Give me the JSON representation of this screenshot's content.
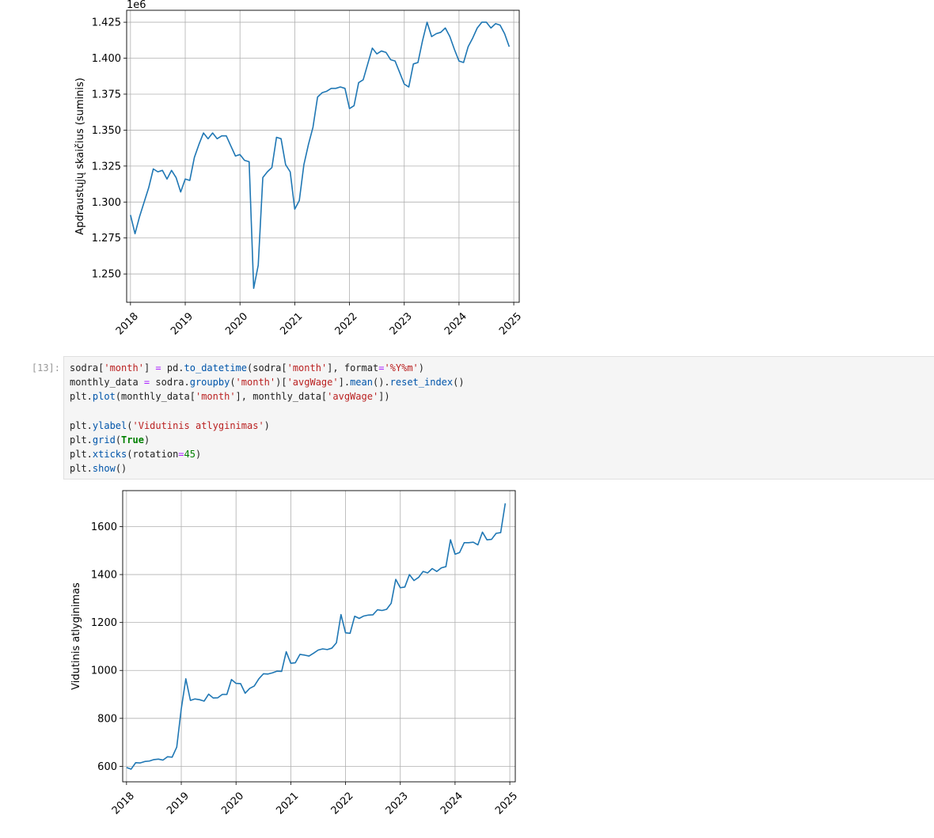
{
  "cell": {
    "prompt": "[13]:",
    "code_lines": [
      [
        {
          "t": "sodra",
          "c": "pl"
        },
        {
          "t": "[",
          "c": "pl"
        },
        {
          "t": "'month'",
          "c": "str"
        },
        {
          "t": "] ",
          "c": "pl"
        },
        {
          "t": "=",
          "c": "op"
        },
        {
          "t": " pd.",
          "c": "pl"
        },
        {
          "t": "to_datetime",
          "c": "fn"
        },
        {
          "t": "(sodra[",
          "c": "pl"
        },
        {
          "t": "'month'",
          "c": "str"
        },
        {
          "t": "], format",
          "c": "pl"
        },
        {
          "t": "=",
          "c": "op"
        },
        {
          "t": "'%Y%m'",
          "c": "str"
        },
        {
          "t": ")",
          "c": "pl"
        }
      ],
      [
        {
          "t": "monthly_data ",
          "c": "pl"
        },
        {
          "t": "=",
          "c": "op"
        },
        {
          "t": " sodra.",
          "c": "pl"
        },
        {
          "t": "groupby",
          "c": "fn"
        },
        {
          "t": "(",
          "c": "pl"
        },
        {
          "t": "'month'",
          "c": "str"
        },
        {
          "t": ")[",
          "c": "pl"
        },
        {
          "t": "'avgWage'",
          "c": "str"
        },
        {
          "t": "].",
          "c": "pl"
        },
        {
          "t": "mean",
          "c": "fn"
        },
        {
          "t": "().",
          "c": "pl"
        },
        {
          "t": "reset_index",
          "c": "fn"
        },
        {
          "t": "()",
          "c": "pl"
        }
      ],
      [
        {
          "t": "plt.",
          "c": "pl"
        },
        {
          "t": "plot",
          "c": "fn"
        },
        {
          "t": "(monthly_data[",
          "c": "pl"
        },
        {
          "t": "'month'",
          "c": "str"
        },
        {
          "t": "], monthly_data[",
          "c": "pl"
        },
        {
          "t": "'avgWage'",
          "c": "str"
        },
        {
          "t": "])",
          "c": "pl"
        }
      ],
      [],
      [
        {
          "t": "plt.",
          "c": "pl"
        },
        {
          "t": "ylabel",
          "c": "fn"
        },
        {
          "t": "(",
          "c": "pl"
        },
        {
          "t": "'Vidutinis atlyginimas'",
          "c": "str"
        },
        {
          "t": ")",
          "c": "pl"
        }
      ],
      [
        {
          "t": "plt.",
          "c": "pl"
        },
        {
          "t": "grid",
          "c": "fn"
        },
        {
          "t": "(",
          "c": "pl"
        },
        {
          "t": "True",
          "c": "kw"
        },
        {
          "t": ")",
          "c": "pl"
        }
      ],
      [
        {
          "t": "plt.",
          "c": "pl"
        },
        {
          "t": "xticks",
          "c": "fn"
        },
        {
          "t": "(rotation",
          "c": "pl"
        },
        {
          "t": "=",
          "c": "op"
        },
        {
          "t": "45",
          "c": "num"
        },
        {
          "t": ")",
          "c": "pl"
        }
      ],
      [
        {
          "t": "plt.",
          "c": "pl"
        },
        {
          "t": "show",
          "c": "fn"
        },
        {
          "t": "()",
          "c": "pl"
        }
      ]
    ]
  },
  "colors": {
    "line": "#1f77b4",
    "grid": "#b0b0b0"
  },
  "chart_data": [
    {
      "type": "line",
      "ylabel": "Apdraustųjų skaičius (suminis)",
      "offset_text": "1e6",
      "grid": true,
      "xlim": [
        2017.93,
        2025.1
      ],
      "ylim": [
        1.2303,
        1.4333
      ],
      "xticks": [
        2018,
        2019,
        2020,
        2021,
        2022,
        2023,
        2024,
        2025
      ],
      "xtick_labels": [
        "2018",
        "2019",
        "2020",
        "2021",
        "2022",
        "2023",
        "2024",
        "2025"
      ],
      "yticks": [
        1.25,
        1.275,
        1.3,
        1.325,
        1.35,
        1.375,
        1.4,
        1.425
      ],
      "ytick_labels": [
        "1.250",
        "1.275",
        "1.300",
        "1.325",
        "1.350",
        "1.375",
        "1.400",
        "1.425"
      ],
      "x": [
        2018.0,
        2018.083,
        2018.167,
        2018.25,
        2018.333,
        2018.417,
        2018.5,
        2018.583,
        2018.667,
        2018.75,
        2018.833,
        2018.917,
        2019.0,
        2019.083,
        2019.167,
        2019.25,
        2019.333,
        2019.417,
        2019.5,
        2019.583,
        2019.667,
        2019.75,
        2019.833,
        2019.917,
        2020.0,
        2020.083,
        2020.167,
        2020.25,
        2020.333,
        2020.417,
        2020.5,
        2020.583,
        2020.667,
        2020.75,
        2020.833,
        2020.917,
        2021.0,
        2021.083,
        2021.167,
        2021.25,
        2021.333,
        2021.417,
        2021.5,
        2021.583,
        2021.667,
        2021.75,
        2021.833,
        2021.917,
        2022.0,
        2022.083,
        2022.167,
        2022.25,
        2022.333,
        2022.417,
        2022.5,
        2022.583,
        2022.667,
        2022.75,
        2022.833,
        2022.917,
        2023.0,
        2023.083,
        2023.167,
        2023.25,
        2023.333,
        2023.417,
        2023.5,
        2023.583,
        2023.667,
        2023.75,
        2023.833,
        2023.917,
        2024.0,
        2024.083,
        2024.167,
        2024.25,
        2024.333,
        2024.417,
        2024.5,
        2024.583,
        2024.667,
        2024.75,
        2024.833,
        2024.917
      ],
      "y": [
        1.291,
        1.278,
        1.29,
        1.3,
        1.31,
        1.323,
        1.321,
        1.322,
        1.316,
        1.322,
        1.317,
        1.307,
        1.316,
        1.315,
        1.331,
        1.34,
        1.348,
        1.344,
        1.348,
        1.344,
        1.346,
        1.346,
        1.339,
        1.332,
        1.333,
        1.329,
        1.328,
        1.24,
        1.256,
        1.317,
        1.321,
        1.324,
        1.345,
        1.344,
        1.326,
        1.321,
        1.295,
        1.301,
        1.326,
        1.34,
        1.352,
        1.373,
        1.376,
        1.377,
        1.379,
        1.379,
        1.38,
        1.379,
        1.365,
        1.367,
        1.383,
        1.385,
        1.396,
        1.407,
        1.403,
        1.405,
        1.404,
        1.399,
        1.398,
        1.39,
        1.382,
        1.38,
        1.396,
        1.397,
        1.412,
        1.425,
        1.415,
        1.417,
        1.418,
        1.421,
        1.415,
        1.406,
        1.398,
        1.397,
        1.408,
        1.414,
        1.421,
        1.425,
        1.425,
        1.421,
        1.424,
        1.423,
        1.417,
        1.408
      ]
    },
    {
      "type": "line",
      "ylabel": "Vidutinis atlyginimas",
      "grid": true,
      "xlim": [
        2017.93,
        2025.1
      ],
      "ylim": [
        535.3,
        1750.2
      ],
      "xticks": [
        2018,
        2019,
        2020,
        2021,
        2022,
        2023,
        2024,
        2025
      ],
      "xtick_labels": [
        "2018",
        "2019",
        "2020",
        "2021",
        "2022",
        "2023",
        "2024",
        "2025"
      ],
      "yticks": [
        600,
        800,
        1000,
        1200,
        1400,
        1600
      ],
      "ytick_labels": [
        "600",
        "800",
        "1000",
        "1200",
        "1400",
        "1600"
      ],
      "x": [
        2018.0,
        2018.083,
        2018.167,
        2018.25,
        2018.333,
        2018.417,
        2018.5,
        2018.583,
        2018.667,
        2018.75,
        2018.833,
        2018.917,
        2019.0,
        2019.083,
        2019.167,
        2019.25,
        2019.333,
        2019.417,
        2019.5,
        2019.583,
        2019.667,
        2019.75,
        2019.833,
        2019.917,
        2020.0,
        2020.083,
        2020.167,
        2020.25,
        2020.333,
        2020.417,
        2020.5,
        2020.583,
        2020.667,
        2020.75,
        2020.833,
        2020.917,
        2021.0,
        2021.083,
        2021.167,
        2021.25,
        2021.333,
        2021.417,
        2021.5,
        2021.583,
        2021.667,
        2021.75,
        2021.833,
        2021.917,
        2022.0,
        2022.083,
        2022.167,
        2022.25,
        2022.333,
        2022.417,
        2022.5,
        2022.583,
        2022.667,
        2022.75,
        2022.833,
        2022.917,
        2023.0,
        2023.083,
        2023.167,
        2023.25,
        2023.333,
        2023.417,
        2023.5,
        2023.583,
        2023.667,
        2023.75,
        2023.833,
        2023.917,
        2024.0,
        2024.083,
        2024.167,
        2024.25,
        2024.333,
        2024.417,
        2024.5,
        2024.583,
        2024.667,
        2024.75,
        2024.833,
        2024.917
      ],
      "y": [
        595,
        588,
        615,
        614,
        620,
        622,
        628,
        630,
        626,
        640,
        638,
        680,
        840,
        965,
        875,
        881,
        878,
        872,
        901,
        885,
        886,
        900,
        900,
        962,
        946,
        945,
        905,
        925,
        935,
        965,
        986,
        985,
        990,
        997,
        996,
        1078,
        1030,
        1032,
        1067,
        1064,
        1060,
        1072,
        1085,
        1090,
        1087,
        1093,
        1115,
        1233,
        1157,
        1155,
        1226,
        1217,
        1227,
        1231,
        1232,
        1253,
        1250,
        1255,
        1280,
        1380,
        1345,
        1348,
        1400,
        1375,
        1388,
        1413,
        1407,
        1425,
        1413,
        1428,
        1433,
        1545,
        1485,
        1492,
        1533,
        1533,
        1535,
        1524,
        1577,
        1545,
        1547,
        1572,
        1575,
        1697
      ]
    }
  ]
}
